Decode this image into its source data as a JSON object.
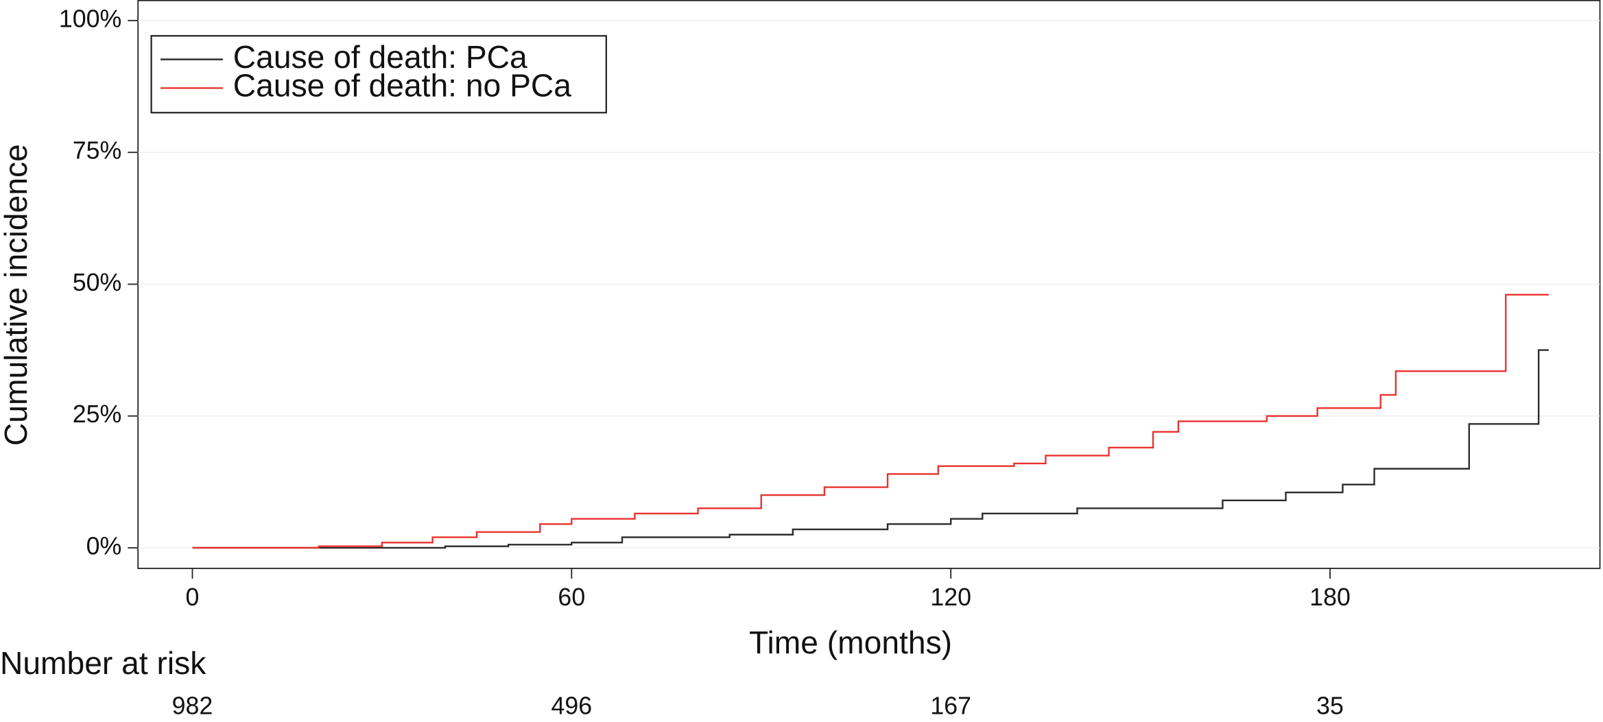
{
  "chart_data": {
    "type": "step",
    "xlabel": "Time (months)",
    "ylabel": "Cumulative incidence",
    "xlim": [
      -8.6,
      222.7
    ],
    "ylim": [
      -3.9,
      103.9
    ],
    "xticks": [
      0,
      60,
      120,
      180
    ],
    "yticks": [
      {
        "value": 0,
        "label": "0%"
      },
      {
        "value": 25,
        "label": "25%"
      },
      {
        "value": 50,
        "label": "50%"
      },
      {
        "value": 75,
        "label": "75%"
      },
      {
        "value": 100,
        "label": "100%"
      }
    ],
    "grid": true,
    "legend": "upper left",
    "series": [
      {
        "name": "Cause of death: PCa",
        "color": "#2b2b2b",
        "x": [
          0,
          40,
          50,
          60,
          68,
          85,
          95,
          110,
          120,
          125,
          140,
          163,
          173,
          182,
          187,
          202,
          213,
          214.6
        ],
        "values": [
          0,
          0.3,
          0.6,
          1,
          2,
          2.5,
          3.5,
          4.5,
          5.5,
          6.5,
          7.5,
          9,
          10.5,
          12,
          15,
          23.5,
          37.5,
          37.5
        ]
      },
      {
        "name": "Cause of death: no PCa",
        "color": "#e8322e",
        "x": [
          0,
          20,
          30,
          38,
          45,
          55,
          60,
          70,
          80,
          90,
          100,
          110,
          118,
          130,
          135,
          145,
          152,
          156,
          170,
          178,
          188,
          190.4,
          207.8,
          214.6
        ],
        "values": [
          0,
          0.3,
          1,
          2,
          3,
          4.5,
          5.5,
          6.5,
          7.5,
          10,
          11.5,
          14,
          15.5,
          16,
          17.5,
          19,
          22,
          24,
          25,
          26.5,
          29,
          33.5,
          48,
          48
        ]
      }
    ]
  },
  "risk_table": {
    "title": "Number at risk",
    "x": [
      0,
      60,
      120,
      180
    ],
    "values": [
      982,
      496,
      167,
      35
    ]
  }
}
